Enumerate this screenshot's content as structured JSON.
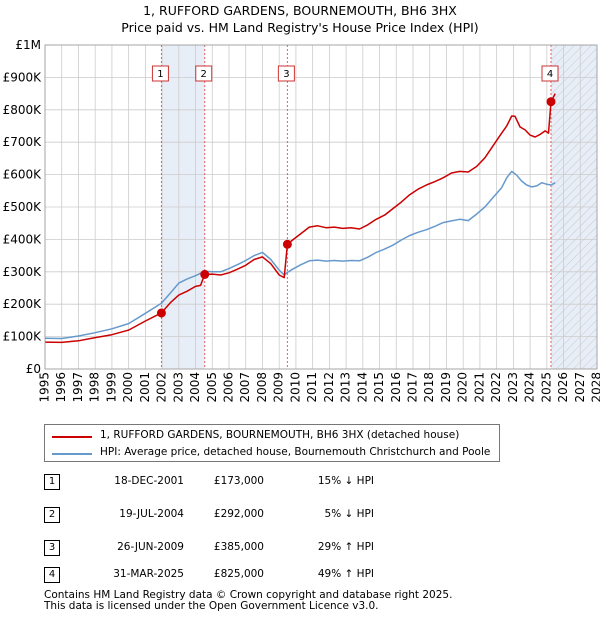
{
  "title": {
    "line1": "1, RUFFORD GARDENS, BOURNEMOUTH, BH6 3HX",
    "line2": "Price paid vs. HM Land Registry's House Price Index (HPI)"
  },
  "colors": {
    "property": "#cc0000",
    "hpi": "#6699cc",
    "shade": "#e8eef8",
    "grid": "#cccccc",
    "vline": "#e06060"
  },
  "chart_data": {
    "type": "line",
    "title": "1, RUFFORD GARDENS, BOURNEMOUTH, BH6 3HX - Price paid vs. HM Land Registry's House Price Index (HPI)",
    "xlim": [
      1995,
      2028
    ],
    "ylim": [
      0,
      1000000
    ],
    "x_ticks": [
      1995,
      1996,
      1997,
      1998,
      1999,
      2000,
      2001,
      2002,
      2003,
      2004,
      2005,
      2006,
      2007,
      2008,
      2009,
      2010,
      2011,
      2012,
      2013,
      2014,
      2015,
      2016,
      2017,
      2018,
      2019,
      2020,
      2021,
      2022,
      2023,
      2024,
      2025,
      2026,
      2027,
      2028
    ],
    "y_ticks": [
      {
        "value": 0,
        "label": "£0"
      },
      {
        "value": 100000,
        "label": "£100K"
      },
      {
        "value": 200000,
        "label": "£200K"
      },
      {
        "value": 300000,
        "label": "£300K"
      },
      {
        "value": 400000,
        "label": "£400K"
      },
      {
        "value": 500000,
        "label": "£500K"
      },
      {
        "value": 600000,
        "label": "£600K"
      },
      {
        "value": 700000,
        "label": "£700K"
      },
      {
        "value": 800000,
        "label": "£800K"
      },
      {
        "value": 900000,
        "label": "£900K"
      },
      {
        "value": 1000000,
        "label": "£1M"
      }
    ],
    "shaded_ranges": [
      [
        2001.96,
        2004.55
      ],
      [
        2025.25,
        2028
      ]
    ],
    "hatched_range": [
      2025.25,
      2028
    ],
    "series": [
      {
        "name": "1, RUFFORD GARDENS, BOURNEMOUTH, BH6 3HX (detached house)",
        "color": "#cc0000",
        "points": [
          [
            1995.0,
            83000
          ],
          [
            1996.0,
            82000
          ],
          [
            1997.0,
            87000
          ],
          [
            1998.0,
            97000
          ],
          [
            1999.0,
            106000
          ],
          [
            2000.0,
            120000
          ],
          [
            2001.0,
            148000
          ],
          [
            2001.96,
            173000
          ],
          [
            2002.5,
            205000
          ],
          [
            2003.0,
            228000
          ],
          [
            2003.5,
            240000
          ],
          [
            2004.0,
            255000
          ],
          [
            2004.3,
            258000
          ],
          [
            2004.55,
            292000
          ],
          [
            2005.0,
            293000
          ],
          [
            2005.5,
            290000
          ],
          [
            2006.0,
            297000
          ],
          [
            2006.5,
            308000
          ],
          [
            2007.0,
            320000
          ],
          [
            2007.5,
            338000
          ],
          [
            2008.0,
            346000
          ],
          [
            2008.5,
            325000
          ],
          [
            2009.0,
            290000
          ],
          [
            2009.3,
            282000
          ],
          [
            2009.49,
            385000
          ],
          [
            2009.8,
            398000
          ],
          [
            2010.3,
            418000
          ],
          [
            2010.8,
            438000
          ],
          [
            2011.3,
            442000
          ],
          [
            2011.8,
            436000
          ],
          [
            2012.3,
            438000
          ],
          [
            2012.8,
            434000
          ],
          [
            2013.3,
            436000
          ],
          [
            2013.8,
            432000
          ],
          [
            2014.3,
            445000
          ],
          [
            2014.8,
            462000
          ],
          [
            2015.3,
            475000
          ],
          [
            2015.8,
            495000
          ],
          [
            2016.3,
            515000
          ],
          [
            2016.8,
            538000
          ],
          [
            2017.3,
            555000
          ],
          [
            2017.8,
            568000
          ],
          [
            2018.3,
            578000
          ],
          [
            2018.8,
            590000
          ],
          [
            2019.3,
            605000
          ],
          [
            2019.8,
            610000
          ],
          [
            2020.3,
            608000
          ],
          [
            2020.8,
            625000
          ],
          [
            2021.3,
            652000
          ],
          [
            2021.8,
            690000
          ],
          [
            2022.3,
            728000
          ],
          [
            2022.6,
            750000
          ],
          [
            2022.9,
            781000
          ],
          [
            2023.1,
            780000
          ],
          [
            2023.4,
            747000
          ],
          [
            2023.7,
            738000
          ],
          [
            2024.0,
            722000
          ],
          [
            2024.3,
            716000
          ],
          [
            2024.6,
            724000
          ],
          [
            2024.9,
            735000
          ],
          [
            2025.1,
            728000
          ],
          [
            2025.25,
            825000
          ],
          [
            2025.5,
            850000
          ]
        ]
      },
      {
        "name": "HPI: Average price, detached house, Bournemouth Christchurch and Poole",
        "color": "#6699cc",
        "points": [
          [
            1995.0,
            95000
          ],
          [
            1996.0,
            94000
          ],
          [
            1997.0,
            102000
          ],
          [
            1998.0,
            112000
          ],
          [
            1999.0,
            124000
          ],
          [
            2000.0,
            140000
          ],
          [
            2001.0,
            172000
          ],
          [
            2001.96,
            203000
          ],
          [
            2002.5,
            235000
          ],
          [
            2003.0,
            265000
          ],
          [
            2003.5,
            278000
          ],
          [
            2004.0,
            288000
          ],
          [
            2004.55,
            302000
          ],
          [
            2005.0,
            300000
          ],
          [
            2005.5,
            300000
          ],
          [
            2006.0,
            310000
          ],
          [
            2006.5,
            322000
          ],
          [
            2007.0,
            335000
          ],
          [
            2007.5,
            350000
          ],
          [
            2008.0,
            360000
          ],
          [
            2008.5,
            338000
          ],
          [
            2009.0,
            305000
          ],
          [
            2009.3,
            290000
          ],
          [
            2009.49,
            298000
          ],
          [
            2009.8,
            308000
          ],
          [
            2010.3,
            322000
          ],
          [
            2010.8,
            334000
          ],
          [
            2011.3,
            336000
          ],
          [
            2011.8,
            333000
          ],
          [
            2012.3,
            335000
          ],
          [
            2012.8,
            333000
          ],
          [
            2013.3,
            335000
          ],
          [
            2013.8,
            334000
          ],
          [
            2014.3,
            345000
          ],
          [
            2014.8,
            360000
          ],
          [
            2015.3,
            370000
          ],
          [
            2015.8,
            382000
          ],
          [
            2016.3,
            398000
          ],
          [
            2016.8,
            412000
          ],
          [
            2017.3,
            422000
          ],
          [
            2017.8,
            430000
          ],
          [
            2018.3,
            440000
          ],
          [
            2018.8,
            452000
          ],
          [
            2019.3,
            457000
          ],
          [
            2019.8,
            462000
          ],
          [
            2020.3,
            458000
          ],
          [
            2020.8,
            478000
          ],
          [
            2021.3,
            500000
          ],
          [
            2021.8,
            530000
          ],
          [
            2022.3,
            560000
          ],
          [
            2022.6,
            590000
          ],
          [
            2022.9,
            610000
          ],
          [
            2023.2,
            598000
          ],
          [
            2023.5,
            580000
          ],
          [
            2023.8,
            568000
          ],
          [
            2024.1,
            562000
          ],
          [
            2024.4,
            565000
          ],
          [
            2024.7,
            575000
          ],
          [
            2025.0,
            570000
          ],
          [
            2025.25,
            568000
          ],
          [
            2025.5,
            575000
          ]
        ]
      }
    ],
    "sale_markers": [
      {
        "id": "1",
        "x": 2001.96,
        "y": 173000
      },
      {
        "id": "2",
        "x": 2004.55,
        "y": 292000
      },
      {
        "id": "3",
        "x": 2009.49,
        "y": 385000
      },
      {
        "id": "4",
        "x": 2025.25,
        "y": 825000
      }
    ]
  },
  "legend": {
    "property_label": "1, RUFFORD GARDENS, BOURNEMOUTH, BH6 3HX (detached house)",
    "hpi_label": "HPI: Average price, detached house, Bournemouth Christchurch and Poole"
  },
  "sales": [
    {
      "num": "1",
      "date": "18-DEC-2001",
      "price": "£173,000",
      "hpi": "15% ↓ HPI"
    },
    {
      "num": "2",
      "date": "19-JUL-2004",
      "price": "£292,000",
      "hpi": "5% ↓ HPI"
    },
    {
      "num": "3",
      "date": "26-JUN-2009",
      "price": "£385,000",
      "hpi": "29% ↑ HPI"
    },
    {
      "num": "4",
      "date": "31-MAR-2025",
      "price": "£825,000",
      "hpi": "49% ↑ HPI"
    }
  ],
  "footer": {
    "line1": "Contains HM Land Registry data © Crown copyright and database right 2025.",
    "line2": "This data is licensed under the Open Government Licence v3.0."
  }
}
